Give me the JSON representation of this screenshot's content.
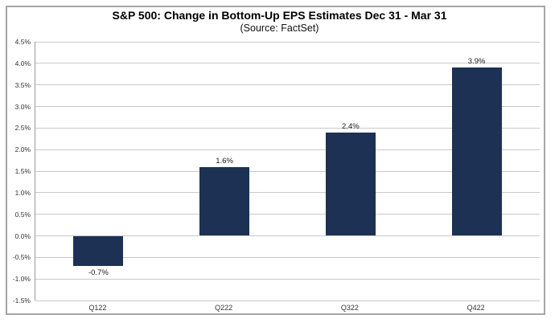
{
  "chart_data": {
    "type": "bar",
    "title": "S&P 500: Change in Bottom-Up EPS Estimates Dec 31 - Mar 31",
    "subtitle": "(Source: FactSet)",
    "categories": [
      "Q122",
      "Q222",
      "Q322",
      "Q422"
    ],
    "values": [
      -0.7,
      1.6,
      2.4,
      3.9
    ],
    "value_labels": [
      "-0.7%",
      "1.6%",
      "2.4%",
      "3.9%"
    ],
    "y_ticks": [
      "4.5%",
      "4.0%",
      "3.5%",
      "3.0%",
      "2.5%",
      "2.0%",
      "1.5%",
      "1.0%",
      "0.5%",
      "0.0%",
      "-0.5%",
      "-1.0%",
      "-1.5%"
    ],
    "ylim": [
      -1.5,
      4.5
    ],
    "xlabel": "",
    "ylabel": "",
    "grid": true,
    "legend": "none",
    "colors": {
      "bar": "#1c3154",
      "gridline": "#c9c9c9",
      "axis_line": "#9a9a9a",
      "outer_border": "#a6a6a6",
      "text": "#000000"
    }
  }
}
